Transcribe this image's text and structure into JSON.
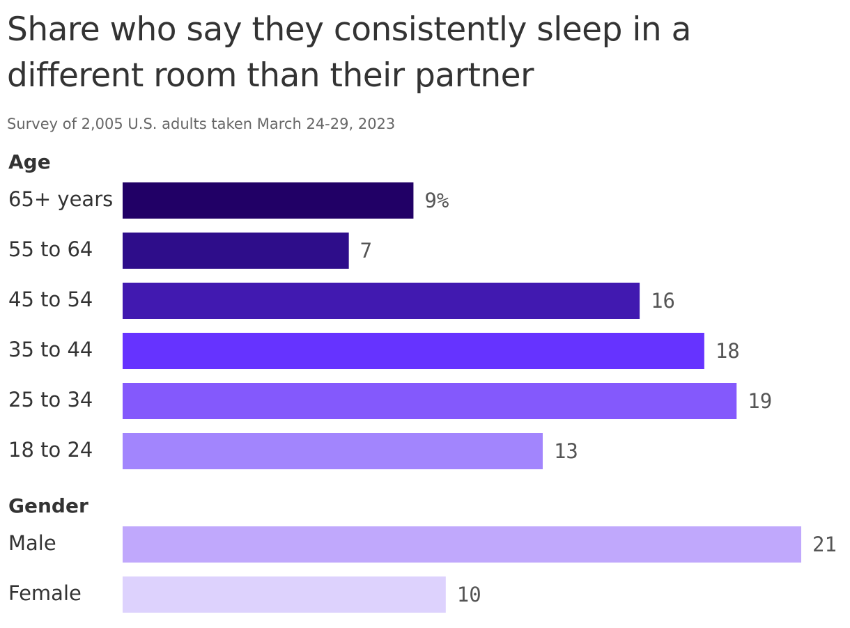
{
  "title": "Share who say they consistently sleep in a different room than their partner",
  "subtitle": "Survey of 2,005 U.S. adults taken March 24-29, 2023",
  "chart_data": [
    {
      "type": "bar",
      "title": "Age",
      "categories": [
        "65+ years",
        "55 to 64",
        "45 to 54",
        "35 to 44",
        "25 to 34",
        "18 to 24"
      ],
      "values": [
        9,
        7,
        16,
        18,
        19,
        13
      ],
      "value_labels": [
        "9%",
        "7",
        "16",
        "18",
        "19",
        "13"
      ],
      "colors": [
        "#210066",
        "#2e0d8a",
        "#4119b0",
        "#6633ff",
        "#8459fc",
        "#a285fd"
      ]
    },
    {
      "type": "bar",
      "title": "Gender",
      "categories": [
        "Male",
        "Female"
      ],
      "values": [
        21,
        10
      ],
      "value_labels": [
        "21",
        "10"
      ],
      "colors": [
        "#c0a8fc",
        "#ddd2fd"
      ]
    }
  ]
}
